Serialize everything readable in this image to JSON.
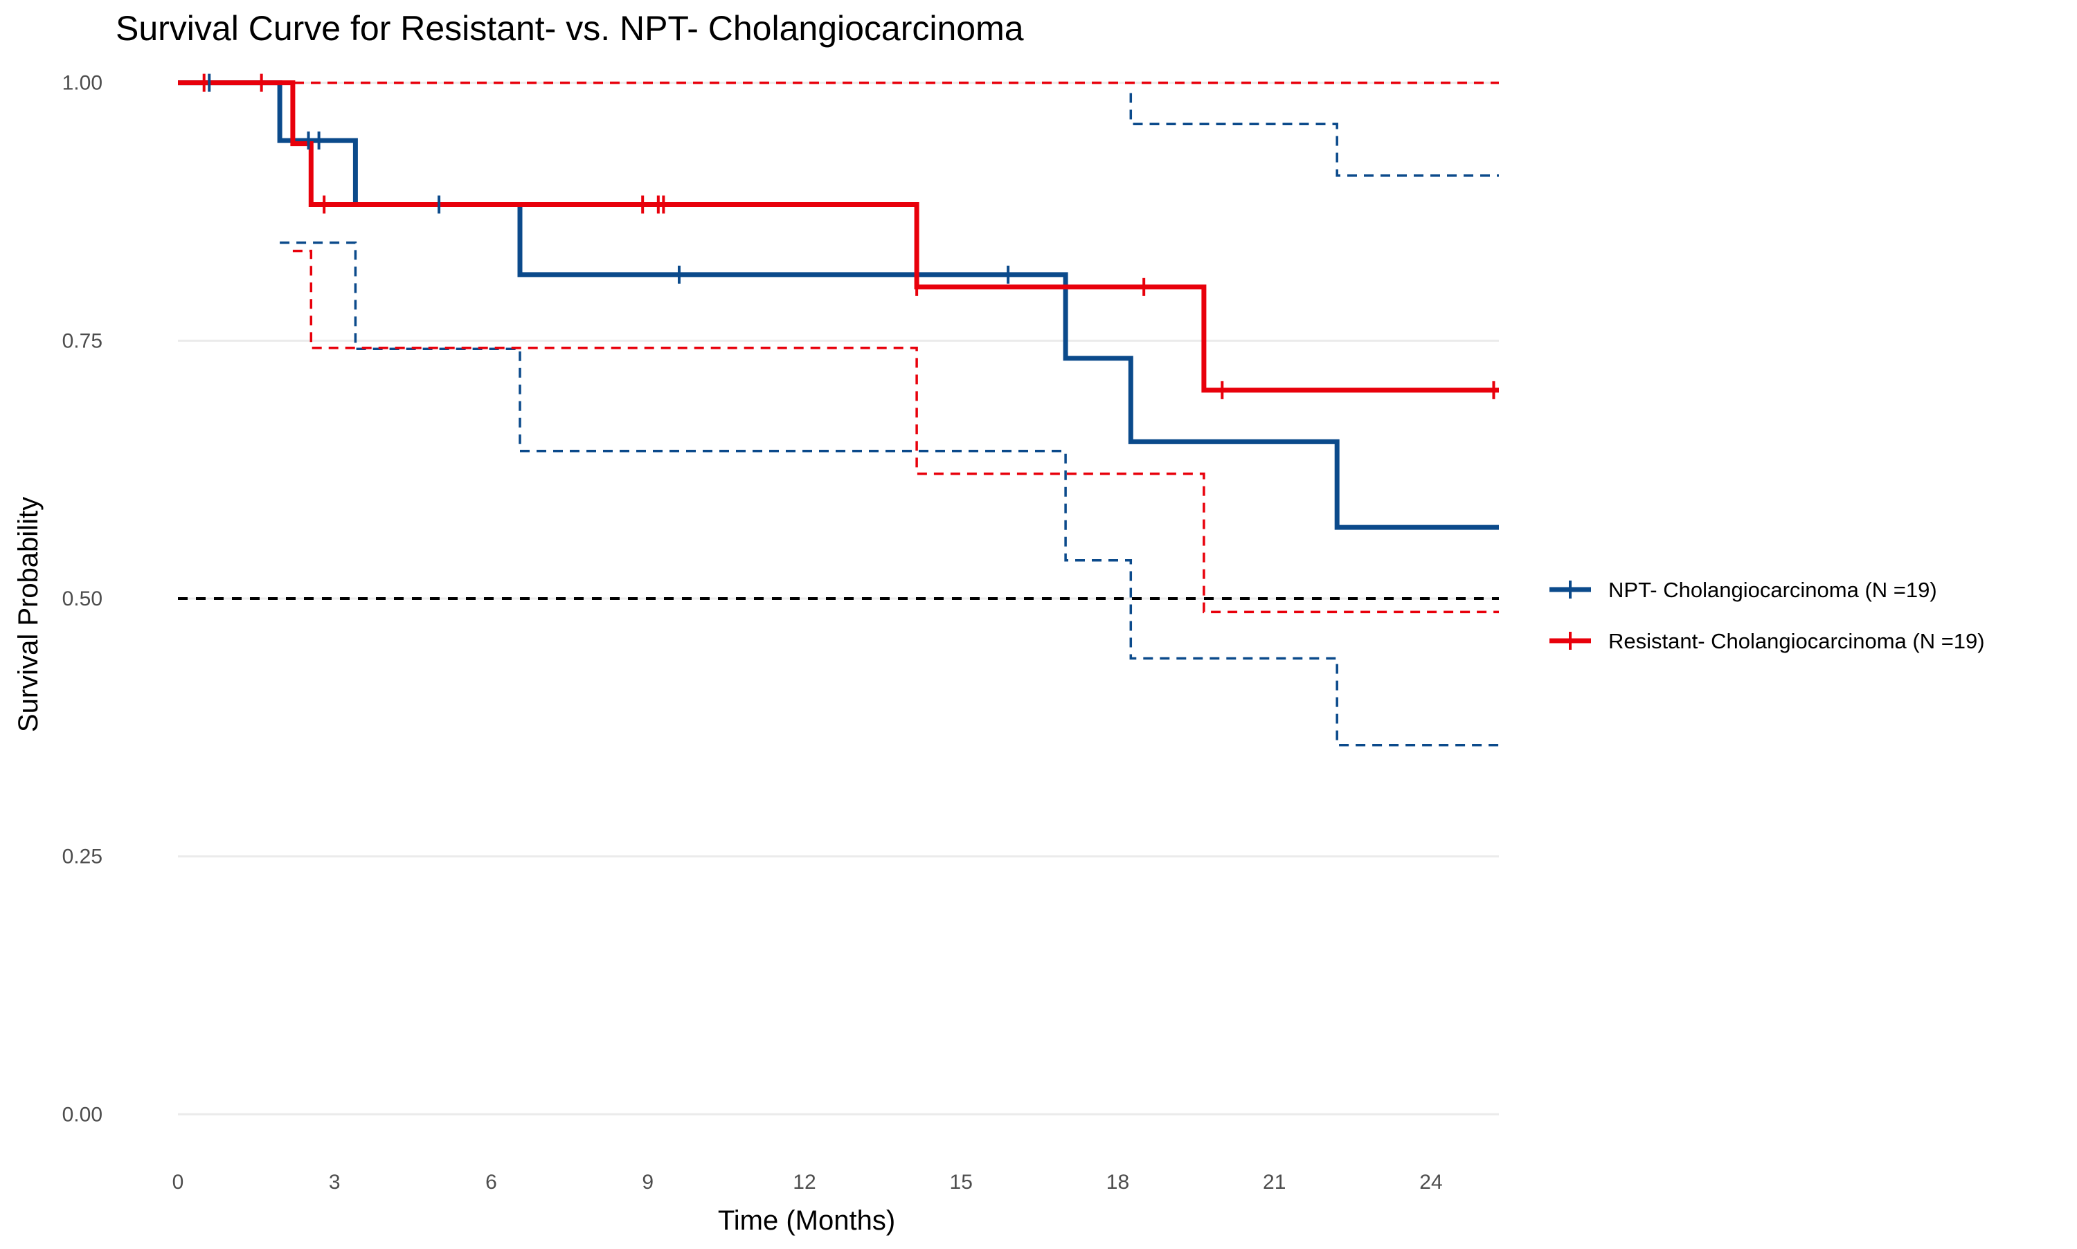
{
  "chart_data": {
    "type": "line",
    "subtype": "kaplan-meier survival step curves with confidence bands",
    "title": "Survival Curve for Resistant- vs. NPT- Cholangiocarcinoma",
    "xlabel": "Time (Months)",
    "ylabel": "Survival Probability",
    "xlim": [
      0,
      25.3
    ],
    "ylim": [
      -0.04,
      1.04
    ],
    "x_ticks": [
      0,
      3,
      6,
      9,
      12,
      15,
      18,
      21,
      24
    ],
    "x_tick_labels": [
      "0",
      "3",
      "6",
      "9",
      "12",
      "15",
      "18",
      "21",
      "24"
    ],
    "y_ticks": [
      0,
      0.25,
      0.5,
      0.75,
      1.0
    ],
    "y_tick_labels": [
      "0.00",
      "0.25",
      "0.50",
      "0.75",
      "1.00"
    ],
    "grid": "horizontal major",
    "legend_position": "right",
    "reference_line": {
      "y": 0.5,
      "style": "dashed",
      "color": "#000000"
    },
    "series": [
      {
        "name": "NPT- Cholangiocarcinoma (N =19)",
        "color": "#0b4a8b",
        "survival_steps": [
          [
            0,
            1.0
          ],
          [
            1.95,
            0.944
          ],
          [
            3.4,
            0.882
          ],
          [
            6.55,
            0.814
          ],
          [
            17.0,
            0.733
          ],
          [
            18.25,
            0.652
          ],
          [
            22.2,
            0.569
          ]
        ],
        "survival_end_x": 25.3,
        "censor_times": [
          0.6,
          2.5,
          2.7,
          5.0,
          9.6,
          15.9
        ],
        "ci_lower_steps": [
          [
            1.95,
            0.845
          ],
          [
            3.4,
            0.742
          ],
          [
            6.55,
            0.643
          ],
          [
            17.0,
            0.537
          ],
          [
            18.25,
            0.442
          ],
          [
            22.2,
            0.358
          ]
        ],
        "ci_upper_steps": [
          [
            18.25,
            0.99
          ],
          [
            18.25,
            0.96
          ],
          [
            22.2,
            0.91
          ]
        ],
        "ci_end_x": 25.3
      },
      {
        "name": "Resistant- Cholangiocarcinoma (N =19)",
        "color": "#e8000b",
        "survival_steps": [
          [
            0,
            1.0
          ],
          [
            2.2,
            0.941
          ],
          [
            2.55,
            0.882
          ],
          [
            14.15,
            0.802
          ],
          [
            19.65,
            0.702
          ]
        ],
        "survival_end_x": 25.3,
        "censor_times": [
          0.5,
          1.6,
          2.8,
          8.9,
          9.2,
          9.3,
          14.15,
          18.5,
          20.0,
          25.2
        ],
        "ci_lower_steps": [
          [
            2.2,
            0.837
          ],
          [
            2.55,
            0.743
          ],
          [
            14.15,
            0.621
          ],
          [
            19.65,
            0.487
          ]
        ],
        "ci_upper_steps": [
          [
            0,
            1.0
          ]
        ],
        "ci_end_x": 25.3
      }
    ]
  }
}
